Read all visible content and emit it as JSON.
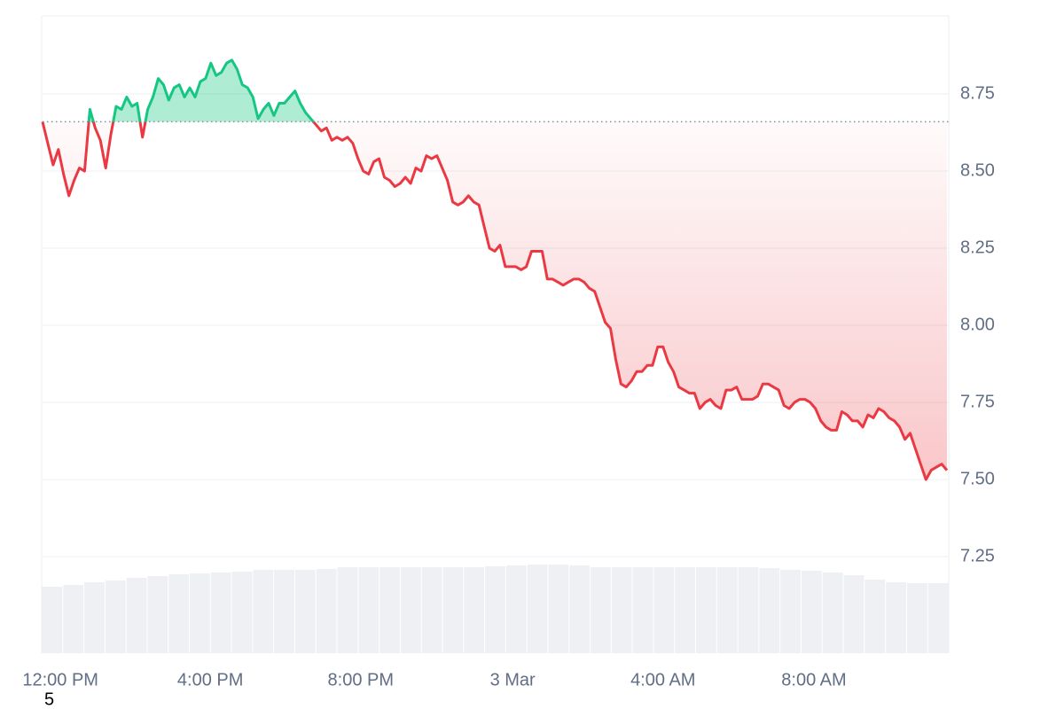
{
  "chart_data": {
    "type": "line",
    "series": [
      {
        "name": "Price",
        "values": [
          8.66,
          8.59,
          8.52,
          8.57,
          8.49,
          8.42,
          8.47,
          8.51,
          8.5,
          8.7,
          8.64,
          8.6,
          8.51,
          8.62,
          8.71,
          8.7,
          8.74,
          8.71,
          8.72,
          8.61,
          8.7,
          8.74,
          8.8,
          8.78,
          8.73,
          8.77,
          8.78,
          8.74,
          8.77,
          8.74,
          8.79,
          8.8,
          8.85,
          8.81,
          8.82,
          8.85,
          8.86,
          8.83,
          8.78,
          8.77,
          8.74,
          8.67,
          8.7,
          8.72,
          8.68,
          8.72,
          8.72,
          8.74,
          8.76,
          8.72,
          8.69,
          8.67,
          8.65,
          8.63,
          8.64,
          8.6,
          8.61,
          8.6,
          8.61,
          8.59,
          8.54,
          8.5,
          8.49,
          8.53,
          8.54,
          8.48,
          8.47,
          8.45,
          8.46,
          8.48,
          8.46,
          8.51,
          8.5,
          8.55,
          8.54,
          8.55,
          8.51,
          8.47,
          8.4,
          8.39,
          8.4,
          8.42,
          8.4,
          8.39,
          8.32,
          8.25,
          8.24,
          8.26,
          8.19,
          8.19,
          8.19,
          8.18,
          8.19,
          8.24,
          8.24,
          8.24,
          8.15,
          8.15,
          8.14,
          8.13,
          8.14,
          8.15,
          8.15,
          8.14,
          8.12,
          8.11,
          8.06,
          8.01,
          7.99,
          7.89,
          7.81,
          7.8,
          7.82,
          7.85,
          7.85,
          7.87,
          7.87,
          7.93,
          7.93,
          7.88,
          7.85,
          7.8,
          7.79,
          7.78,
          7.78,
          7.73,
          7.75,
          7.76,
          7.74,
          7.73,
          7.79,
          7.79,
          7.8,
          7.76,
          7.76,
          7.76,
          7.77,
          7.81,
          7.81,
          7.8,
          7.79,
          7.74,
          7.73,
          7.75,
          7.76,
          7.76,
          7.75,
          7.73,
          7.69,
          7.67,
          7.66,
          7.66,
          7.72,
          7.71,
          7.69,
          7.69,
          7.67,
          7.71,
          7.7,
          7.73,
          7.72,
          7.7,
          7.69,
          7.67,
          7.63,
          7.65,
          7.6,
          7.55,
          7.5,
          7.53,
          7.54,
          7.55,
          7.53
        ]
      }
    ],
    "baseline": 8.66,
    "color_up": "#16c784",
    "color_down": "#ea3943",
    "xlim": [
      0,
      172
    ],
    "xticks": [
      {
        "value": 3.4,
        "label": "12:00 PM"
      },
      {
        "value": 31.9,
        "label": "4:00 PM"
      },
      {
        "value": 60.5,
        "label": "8:00 PM"
      },
      {
        "value": 89.4,
        "label": "3 Mar"
      },
      {
        "value": 118.0,
        "label": "4:00 AM"
      },
      {
        "value": 146.7,
        "label": "8:00 AM"
      }
    ],
    "ylim": [
      6.937,
      9.003
    ],
    "yticks": [
      7.25,
      {
        "value": 7.5,
        "label": "7.50"
      },
      7.75,
      {
        "value": 8.0,
        "label": "8.00"
      },
      8.25,
      {
        "value": 8.5,
        "label": "8.50"
      },
      8.75
    ],
    "grid": true,
    "volumes": [
      75,
      77,
      80,
      82,
      85,
      87,
      89,
      90,
      91,
      92,
      94,
      94,
      94,
      95,
      97,
      97,
      97,
      97,
      97,
      97,
      97,
      98,
      99,
      100,
      100,
      99,
      97,
      97,
      97,
      97,
      97,
      97,
      97,
      97,
      96,
      94,
      93,
      91,
      88,
      83,
      80,
      79,
      79
    ],
    "volume_ylim": [
      0,
      719
    ],
    "volume_color": "#eef0f3",
    "corner_text": "5"
  }
}
